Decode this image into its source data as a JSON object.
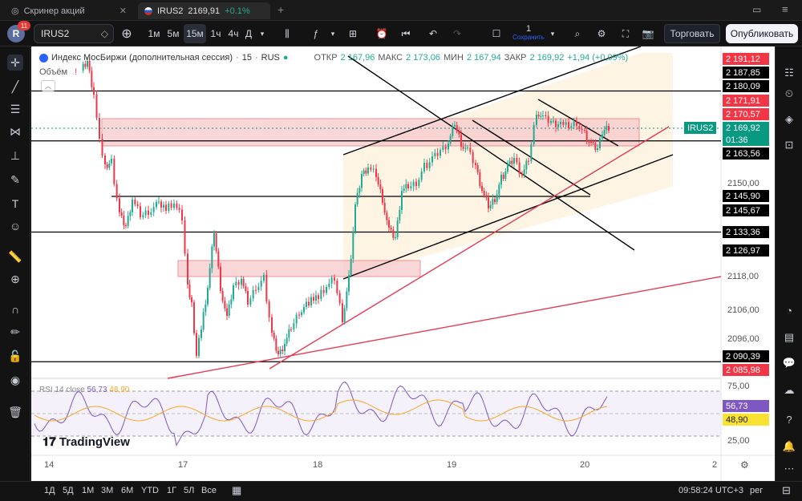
{
  "browser_tabs": [
    {
      "label": "Скринер акций",
      "active": false
    },
    {
      "label": "IRUS2",
      "price": "2169,91",
      "change": "+0.1%",
      "active": true
    }
  ],
  "user": {
    "initial": "R",
    "notifications": "11"
  },
  "toolbar": {
    "symbol": "IRUS2",
    "intervals": [
      "1м",
      "5м",
      "15м",
      "1ч",
      "4ч",
      "Д"
    ],
    "selected_interval": "15м",
    "save_count": "1",
    "save_label": "Сохранить",
    "trade_label": "Торговать",
    "publish_label": "Опубликовать"
  },
  "legend": {
    "title": "Индекс МосБиржи (дополнительная сессия)",
    "interval": "15",
    "exchange": "RUS",
    "open_label": "ОТКР",
    "open": "2 167,96",
    "high_label": "МАКС",
    "high": "2 173,06",
    "low_label": "МИН",
    "low": "2 167,94",
    "close_label": "ЗАКР",
    "close": "2 169,92",
    "change": "+1,94 (+0,09%)",
    "volume_label": "Объём"
  },
  "rsi": {
    "label": "RSI 14 close",
    "value": "56,73",
    "ma": "48,90"
  },
  "logo": "TradingView",
  "price_axis": {
    "labels": [
      "2150,00",
      "2118,00",
      "2106,00",
      "2096,00",
      "75,00",
      "25,00"
    ],
    "tags": [
      {
        "value": "2 191,12",
        "style": "red"
      },
      {
        "value": "2 187,85",
        "style": "blk"
      },
      {
        "value": "2 180,09",
        "style": "blk"
      },
      {
        "value": "2 171,91",
        "style": "red"
      },
      {
        "value": "2 170,57",
        "style": "red"
      },
      {
        "value": "2 169,92",
        "style": "grn"
      },
      {
        "value": "01:36",
        "style": "grn"
      },
      {
        "value": "2 163,56",
        "style": "blk"
      },
      {
        "value": "2 145,90",
        "style": "blk"
      },
      {
        "value": "2 145,67",
        "style": "blk"
      },
      {
        "value": "2 133,36",
        "style": "blk"
      },
      {
        "value": "2 126,97",
        "style": "blk"
      },
      {
        "value": "2 090,39",
        "style": "blk"
      },
      {
        "value": "2 085,98",
        "style": "red"
      },
      {
        "value": "56,73",
        "style": "pur"
      },
      {
        "value": "48,90",
        "style": "yel"
      }
    ],
    "symbol_tag": "IRUS2"
  },
  "time_axis": [
    "14",
    "17",
    "18",
    "19",
    "20",
    "2"
  ],
  "bottom": {
    "ranges": [
      "1Д",
      "5Д",
      "1М",
      "3М",
      "6М",
      "YTD",
      "1Г",
      "5Л",
      "Все"
    ],
    "clock": "09:58:24 UTC+3",
    "mode": "рег"
  },
  "colors": {
    "up": "#22ab94",
    "down": "#f23645",
    "zone": "#f8c9cc",
    "channel": "#fdf3e1",
    "rsi_line": "#7e57c2",
    "rsi_ma": "#f9a825"
  }
}
